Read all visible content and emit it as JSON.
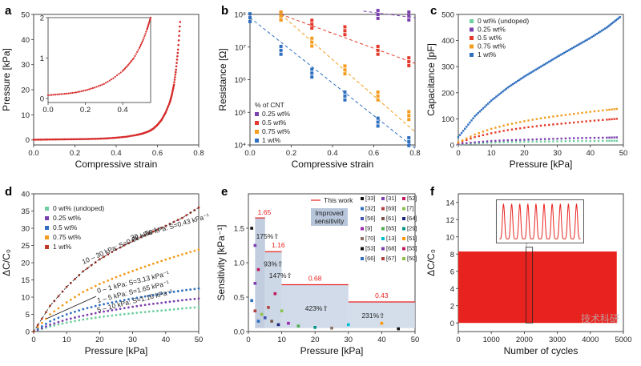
{
  "chart_data": [
    {
      "panel": "a",
      "type": "scatter",
      "xlabel": "Compressive strain",
      "ylabel": "Pressure [kPa]",
      "xlim": [
        0,
        0.8
      ],
      "ylim": [
        -2,
        50
      ],
      "xticks": [
        "0.0",
        "0.2",
        "0.4",
        "0.6",
        "0.8"
      ],
      "yticks": [
        "0",
        "10",
        "20",
        "30",
        "40",
        "50"
      ],
      "series": [
        {
          "color": "#d62a2a",
          "x": [
            0.0,
            0.05,
            0.1,
            0.15,
            0.2,
            0.25,
            0.3,
            0.35,
            0.4,
            0.45,
            0.5,
            0.53,
            0.56,
            0.58,
            0.6,
            0.62,
            0.64,
            0.66,
            0.67,
            0.68,
            0.69,
            0.7,
            0.71
          ],
          "y": [
            0.1,
            0.15,
            0.2,
            0.25,
            0.3,
            0.35,
            0.45,
            0.6,
            0.9,
            1.3,
            2.0,
            2.6,
            3.5,
            4.5,
            6,
            8,
            11,
            15,
            18,
            22,
            28,
            36,
            47
          ]
        }
      ],
      "inset": {
        "xlim": [
          0,
          0.55
        ],
        "ylim": [
          -0.1,
          2
        ],
        "xticks": [
          "0.0",
          "0.2",
          "0.4"
        ],
        "yticks": [
          "0",
          "1",
          "2"
        ],
        "x": [
          0.0,
          0.05,
          0.1,
          0.15,
          0.2,
          0.25,
          0.3,
          0.35,
          0.4,
          0.43,
          0.46,
          0.49,
          0.51,
          0.53,
          0.54,
          0.55
        ],
        "y": [
          0.08,
          0.1,
          0.12,
          0.15,
          0.2,
          0.27,
          0.36,
          0.5,
          0.68,
          0.83,
          1.0,
          1.25,
          1.45,
          1.7,
          1.85,
          2.0
        ]
      }
    },
    {
      "panel": "b",
      "type": "scatter",
      "xlabel": "Compressive strain",
      "ylabel": "Resistance [Ω]",
      "xlim": [
        0,
        0.8
      ],
      "ylog": true,
      "ylim_exp": [
        4,
        8
      ],
      "xticks": [
        "0.0",
        "0.2",
        "0.4",
        "0.6",
        "0.8"
      ],
      "yticks": [
        "10⁴",
        "10⁵",
        "10⁶",
        "10⁷",
        "10⁸"
      ],
      "legend_title": "% of CNT",
      "series": [
        {
          "name": "0.25 wt%",
          "color": "#7b3fb0",
          "x": [
            0.62,
            0.77
          ],
          "ylog": [
            8.0,
            7.95
          ],
          "fit": [
            [
              0.55,
              8.1
            ],
            [
              0.8,
              7.9
            ]
          ]
        },
        {
          "name": "0.5 wt%",
          "color": "#e23a2a",
          "x": [
            0.15,
            0.3,
            0.46,
            0.62,
            0.77
          ],
          "ylog": [
            7.95,
            7.7,
            7.5,
            6.9,
            6.55
          ],
          "fit": [
            [
              0.15,
              8.0
            ],
            [
              0.8,
              6.5
            ]
          ]
        },
        {
          "name": "0.75 wt%",
          "color": "#f39c1d",
          "x": [
            0.15,
            0.3,
            0.46,
            0.62,
            0.77
          ],
          "ylog": [
            7.95,
            7.15,
            6.3,
            5.5,
            4.9
          ],
          "fit": [
            [
              0.15,
              8.0
            ],
            [
              0.8,
              4.4
            ]
          ]
        },
        {
          "name": "1 wt%",
          "color": "#2f6fbf",
          "x": [
            0.0,
            0.15,
            0.3,
            0.46,
            0.62,
            0.77
          ],
          "ylog": [
            7.9,
            6.9,
            6.2,
            5.5,
            4.7,
            4.1
          ],
          "fit": [
            [
              0.0,
              7.9
            ],
            [
              0.8,
              3.9
            ]
          ]
        }
      ]
    },
    {
      "panel": "c",
      "type": "scatter",
      "xlabel": "Pressure [kPa]",
      "ylabel": "Capacitance [pF]",
      "xlim": [
        0,
        50
      ],
      "ylim": [
        0,
        500
      ],
      "xticks": [
        "0",
        "10",
        "20",
        "30",
        "40",
        "50"
      ],
      "yticks": [
        "0",
        "100",
        "200",
        "300",
        "400",
        "500"
      ],
      "series": [
        {
          "name": "0 wt% (undoped)",
          "color": "#6fcf9f",
          "x": [
            0,
            5,
            10,
            15,
            20,
            25,
            30,
            35,
            40,
            45,
            48
          ],
          "y": [
            2,
            6,
            9,
            11,
            12,
            13,
            14,
            15,
            15,
            16,
            16
          ]
        },
        {
          "name": "0.25 wt%",
          "color": "#7b3fb0",
          "x": [
            0,
            5,
            10,
            15,
            20,
            25,
            30,
            35,
            40,
            45,
            48
          ],
          "y": [
            4,
            10,
            15,
            18,
            20,
            22,
            24,
            26,
            27,
            28,
            29
          ]
        },
        {
          "name": "0.5 wt%",
          "color": "#e23a2a",
          "x": [
            0,
            5,
            10,
            15,
            20,
            25,
            30,
            35,
            40,
            45,
            48
          ],
          "y": [
            8,
            30,
            45,
            57,
            66,
            74,
            80,
            86,
            92,
            97,
            100
          ]
        },
        {
          "name": "0.75 wt%",
          "color": "#f39c1d",
          "x": [
            0,
            5,
            10,
            15,
            20,
            25,
            30,
            35,
            40,
            45,
            48
          ],
          "y": [
            10,
            40,
            62,
            78,
            91,
            102,
            111,
            119,
            127,
            134,
            138
          ]
        },
        {
          "name": "1 wt%",
          "color": "#2f6fbf",
          "x": [
            0,
            5,
            10,
            15,
            20,
            25,
            30,
            35,
            40,
            45,
            49
          ],
          "y": [
            30,
            110,
            170,
            220,
            262,
            300,
            338,
            374,
            410,
            450,
            490
          ]
        }
      ]
    },
    {
      "panel": "d",
      "type": "scatter",
      "xlabel": "Pressure [kPa]",
      "ylabel": "ΔC/C₀",
      "xlim": [
        0,
        50
      ],
      "ylim": [
        0,
        40
      ],
      "xticks": [
        "0",
        "10",
        "20",
        "30",
        "40",
        "50"
      ],
      "yticks": [
        "0",
        "5",
        "10",
        "15",
        "20",
        "25",
        "30",
        "35",
        "40"
      ],
      "series": [
        {
          "name": "0 wt% (undoped)",
          "color": "#6fcf9f",
          "x": [
            0,
            5,
            10,
            15,
            20,
            25,
            30,
            35,
            40,
            45,
            50
          ],
          "y": [
            0,
            1.5,
            2.6,
            3.5,
            4.2,
            4.8,
            5.3,
            5.8,
            6.2,
            6.7,
            7.1
          ]
        },
        {
          "name": "0.25 wt%",
          "color": "#7b3fb0",
          "x": [
            0,
            5,
            10,
            15,
            20,
            25,
            30,
            35,
            40,
            45,
            50
          ],
          "y": [
            0,
            2.0,
            3.5,
            4.6,
            5.6,
            6.4,
            7.2,
            7.9,
            8.5,
            9.1,
            9.6
          ]
        },
        {
          "name": "0.5 wt%",
          "color": "#2f6fbf",
          "x": [
            0,
            5,
            10,
            15,
            20,
            25,
            30,
            35,
            40,
            45,
            50
          ],
          "y": [
            0,
            3,
            5,
            6.5,
            7.7,
            8.7,
            9.6,
            10.4,
            11.2,
            11.9,
            12.5
          ]
        },
        {
          "name": "0.75 wt%",
          "color": "#f39c1d",
          "x": [
            0,
            5,
            10,
            15,
            20,
            25,
            30,
            35,
            40,
            45,
            50
          ],
          "y": [
            0,
            5,
            8.5,
            11.5,
            13.8,
            15.8,
            17.6,
            19.3,
            20.9,
            22.4,
            23.8
          ]
        },
        {
          "name": "1 wt%",
          "color": "#c0392b",
          "x": [
            0,
            5,
            10,
            15,
            20,
            25,
            30,
            35,
            40,
            45,
            50
          ],
          "y": [
            0,
            7.5,
            13,
            17.5,
            21,
            23.8,
            26.3,
            28.5,
            30.7,
            33,
            36
          ]
        }
      ],
      "annotations": [
        "10 – 30 kPa: S=0.68 kPa⁻¹",
        "30 – 50 kPa: S=0.43 kPa⁻¹",
        "0 – 1 kPa: S=3.13 kPa⁻¹",
        "1 – 5 kPa: S=1.65 kPa⁻¹",
        "5 – 10 kPa: S=1.16 kPa⁻¹"
      ]
    },
    {
      "panel": "e",
      "type": "bar",
      "xlabel": "Pressure [kPa]",
      "ylabel": "Sensitivity [kPa⁻¹]",
      "xlim": [
        0,
        50
      ],
      "ylim": [
        0,
        2.0
      ],
      "xticks": [
        "0",
        "10",
        "20",
        "30",
        "40",
        "50"
      ],
      "yticks": [
        "0.0",
        "0.5",
        "1.0",
        "1.5"
      ],
      "this_work": [
        {
          "range": [
            1,
            5
          ],
          "value": 1.65,
          "label": "1.65",
          "improvement": "175%⇧"
        },
        {
          "range": [
            5,
            10
          ],
          "value": 1.16,
          "label": "1.16",
          "improvement": "93%⇧"
        },
        {
          "range": [
            5,
            10
          ],
          "value": 1.16,
          "label": "",
          "improvement": "147%⇧"
        },
        {
          "range": [
            10,
            30
          ],
          "value": 0.68,
          "label": "0.68",
          "improvement": "423%⇧"
        },
        {
          "range": [
            30,
            50
          ],
          "value": 0.43,
          "label": "0.43",
          "improvement": "231%⇧"
        }
      ],
      "legend_this_work": "This work",
      "improved_label": "Improved sensitivity",
      "refs": [
        "[33]",
        "[31]",
        "[52]",
        "[32]",
        "[69]",
        "[7]",
        "[56]",
        "[61]",
        "[64]",
        "[9]",
        "[65]",
        "[29]",
        "[70]",
        "[13]",
        "[51]",
        "[53]",
        "[68]",
        "[55]",
        "[66]",
        "[67]",
        "[50]"
      ]
    },
    {
      "panel": "f",
      "type": "line",
      "xlabel": "Number of cycles",
      "ylabel": "ΔC/C₀",
      "xlim": [
        0,
        5000
      ],
      "ylim": [
        -1,
        15
      ],
      "xticks": [
        "0",
        "1000",
        "2000",
        "3000",
        "4000",
        "5000"
      ],
      "yticks": [
        "0",
        "2",
        "4",
        "6",
        "8",
        "10",
        "12",
        "14"
      ],
      "series": [
        {
          "color": "#e8231f",
          "band": [
            0,
            8.3
          ]
        }
      ],
      "inset_peaks": 10
    }
  ],
  "panel_letters": [
    "a",
    "b",
    "c",
    "d",
    "e",
    "f"
  ],
  "watermark": "技术科研"
}
